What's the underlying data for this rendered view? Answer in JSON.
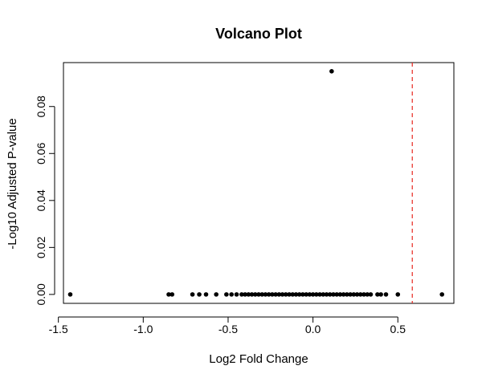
{
  "chart_data": {
    "type": "scatter",
    "title": "Volcano Plot",
    "xlabel": "Log2 Fold Change",
    "ylabel": "-Log10 Adjusted P-value",
    "xlim": [
      -1.47,
      0.83
    ],
    "ylim": [
      -0.0038,
      0.0987
    ],
    "x_ticks": [
      -1.5,
      -1.0,
      -0.5,
      0.0,
      0.5
    ],
    "x_tick_labels": [
      "-1.5",
      "-1.0",
      "-0.5",
      "0.0",
      "0.5"
    ],
    "y_ticks": [
      0.0,
      0.02,
      0.04,
      0.06,
      0.08
    ],
    "y_tick_labels": [
      "0.00",
      "0.02",
      "0.04",
      "0.06",
      "0.08"
    ],
    "grid": false,
    "legend": "none",
    "point_color": "#000000",
    "threshold_line": {
      "orientation": "vertical",
      "x": 0.585,
      "color": "#e8271e",
      "style": "dashed"
    },
    "points": [
      {
        "x": -1.43,
        "y": 0.0
      },
      {
        "x": -0.85,
        "y": 0.0
      },
      {
        "x": -0.83,
        "y": 0.0
      },
      {
        "x": -0.71,
        "y": 0.0
      },
      {
        "x": -0.67,
        "y": 0.0
      },
      {
        "x": -0.63,
        "y": 0.0
      },
      {
        "x": -0.57,
        "y": 0.0
      },
      {
        "x": -0.51,
        "y": 0.0
      },
      {
        "x": -0.48,
        "y": 0.0
      },
      {
        "x": -0.45,
        "y": 0.0
      },
      {
        "x": -0.42,
        "y": 0.0
      },
      {
        "x": -0.4,
        "y": 0.0
      },
      {
        "x": -0.38,
        "y": 0.0
      },
      {
        "x": -0.36,
        "y": 0.0
      },
      {
        "x": -0.34,
        "y": 0.0
      },
      {
        "x": -0.32,
        "y": 0.0
      },
      {
        "x": -0.3,
        "y": 0.0
      },
      {
        "x": -0.28,
        "y": 0.0
      },
      {
        "x": -0.26,
        "y": 0.0
      },
      {
        "x": -0.24,
        "y": 0.0
      },
      {
        "x": -0.22,
        "y": 0.0
      },
      {
        "x": -0.2,
        "y": 0.0
      },
      {
        "x": -0.18,
        "y": 0.0
      },
      {
        "x": -0.16,
        "y": 0.0
      },
      {
        "x": -0.14,
        "y": 0.0
      },
      {
        "x": -0.12,
        "y": 0.0
      },
      {
        "x": -0.1,
        "y": 0.0
      },
      {
        "x": -0.08,
        "y": 0.0
      },
      {
        "x": -0.06,
        "y": 0.0
      },
      {
        "x": -0.04,
        "y": 0.0
      },
      {
        "x": -0.02,
        "y": 0.0
      },
      {
        "x": 0.0,
        "y": 0.0
      },
      {
        "x": 0.02,
        "y": 0.0
      },
      {
        "x": 0.04,
        "y": 0.0
      },
      {
        "x": 0.06,
        "y": 0.0
      },
      {
        "x": 0.08,
        "y": 0.0
      },
      {
        "x": 0.1,
        "y": 0.0
      },
      {
        "x": 0.12,
        "y": 0.0
      },
      {
        "x": 0.14,
        "y": 0.0
      },
      {
        "x": 0.16,
        "y": 0.0
      },
      {
        "x": 0.18,
        "y": 0.0
      },
      {
        "x": 0.2,
        "y": 0.0
      },
      {
        "x": 0.22,
        "y": 0.0
      },
      {
        "x": 0.24,
        "y": 0.0
      },
      {
        "x": 0.26,
        "y": 0.0
      },
      {
        "x": 0.28,
        "y": 0.0
      },
      {
        "x": 0.3,
        "y": 0.0
      },
      {
        "x": 0.32,
        "y": 0.0
      },
      {
        "x": 0.34,
        "y": 0.0
      },
      {
        "x": 0.38,
        "y": 0.0
      },
      {
        "x": 0.4,
        "y": 0.0
      },
      {
        "x": 0.43,
        "y": 0.0
      },
      {
        "x": 0.5,
        "y": 0.0
      },
      {
        "x": 0.76,
        "y": 0.0
      },
      {
        "x": 0.11,
        "y": 0.095
      }
    ]
  }
}
